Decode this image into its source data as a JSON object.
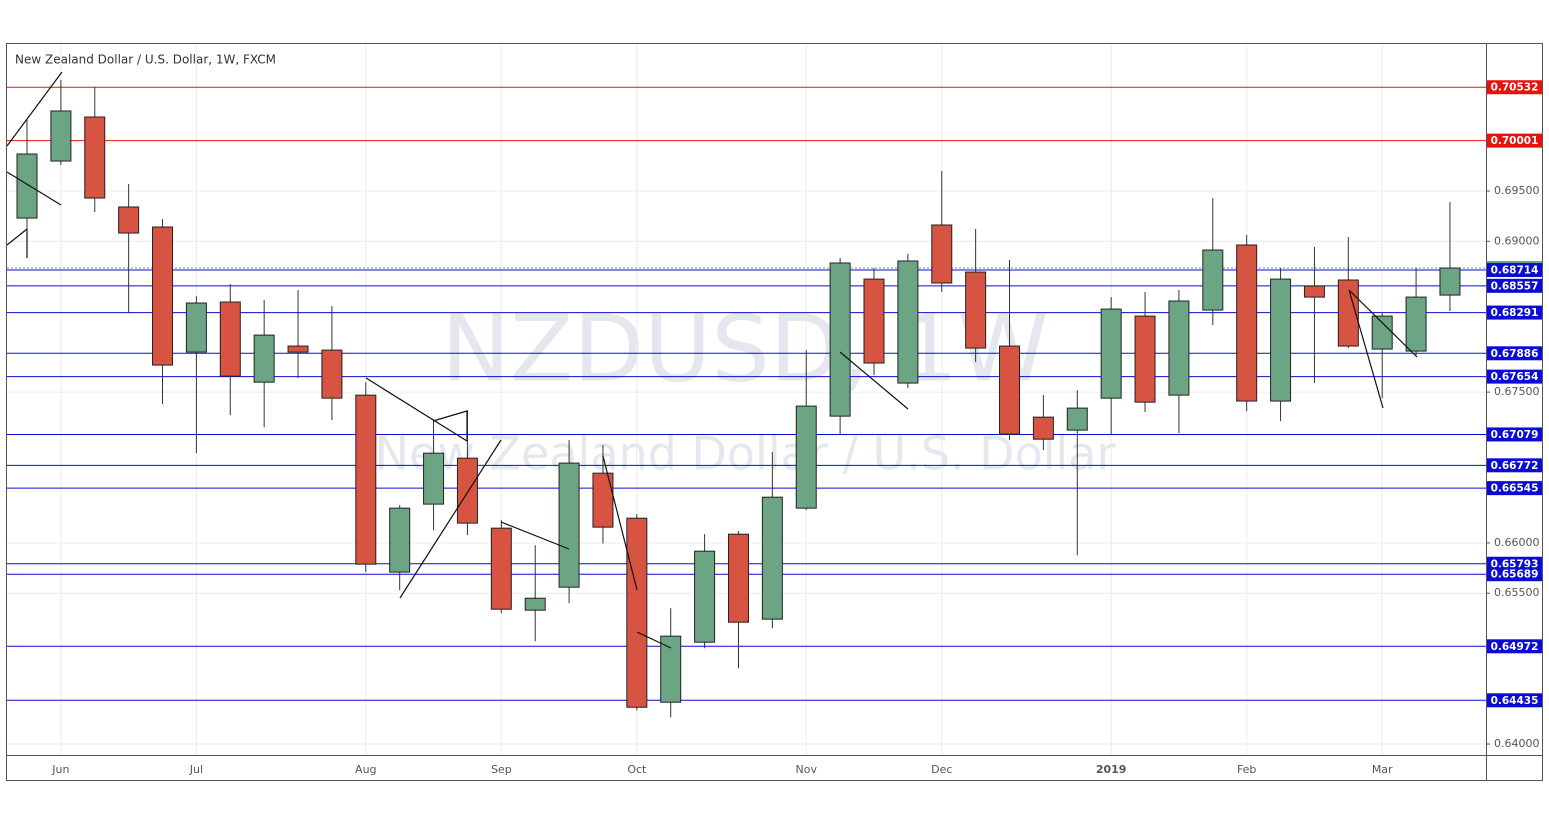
{
  "chart_data": {
    "type": "candlestick",
    "title": "New Zealand Dollar / U.S. Dollar, 1W, FXCM",
    "watermark": "NZDUSD, 1W",
    "watermark_subtitle": "New Zealand Dollar / U.S. Dollar",
    "categories": [
      null,
      "Jun",
      null,
      null,
      null,
      "Jul",
      null,
      null,
      null,
      null,
      "Aug",
      null,
      null,
      null,
      "Sep",
      null,
      null,
      null,
      "Oct",
      null,
      null,
      null,
      null,
      "Nov",
      null,
      null,
      null,
      "Dec",
      null,
      null,
      null,
      null,
      "2019",
      null,
      null,
      null,
      "Feb",
      null,
      null,
      null,
      "Mar",
      null,
      null
    ],
    "open": [
      0.69231,
      0.69798,
      0.70236,
      0.69341,
      0.69142,
      0.67898,
      0.68396,
      0.67599,
      0.67958,
      0.67918,
      0.6747,
      0.6571,
      0.66386,
      0.66843,
      0.66147,
      0.65331,
      0.6556,
      0.66694,
      0.66246,
      0.64416,
      0.65013,
      0.66087,
      0.65242,
      0.66346,
      0.67261,
      0.68624,
      0.6759,
      0.69162,
      0.68694,
      0.67958,
      0.67251,
      0.67122,
      0.6744,
      0.68256,
      0.6747,
      0.68316,
      0.68963,
      0.67411,
      0.68555,
      0.68615,
      0.67928,
      0.67908,
      0.68465
    ],
    "high": [
      0.70206,
      0.70604,
      0.70535,
      0.6957,
      0.69221,
      0.68455,
      0.68575,
      0.68415,
      0.68515,
      0.68356,
      0.67599,
      0.66376,
      0.67221,
      0.67321,
      0.66227,
      0.65978,
      0.67022,
      0.66973,
      0.66286,
      0.65351,
      0.66087,
      0.66117,
      0.66903,
      0.67918,
      0.68833,
      0.68734,
      0.68873,
      0.69699,
      0.69122,
      0.68813,
      0.6747,
      0.6752,
      0.68445,
      0.68495,
      0.68515,
      0.6943,
      0.69062,
      0.68734,
      0.68943,
      0.69042,
      0.68286,
      0.68734,
      0.69391
    ],
    "low": [
      0.68833,
      0.69759,
      0.69291,
      0.68286,
      0.67381,
      0.66893,
      0.67271,
      0.67152,
      0.67639,
      0.67221,
      0.6571,
      0.6553,
      0.66127,
      0.66077,
      0.65301,
      0.65022,
      0.65401,
      0.65993,
      0.64336,
      0.64266,
      0.64953,
      0.64754,
      0.65152,
      0.66326,
      0.67082,
      0.67669,
      0.6754,
      0.68495,
      0.67799,
      0.67022,
      0.66923,
      0.65878,
      0.67082,
      0.67301,
      0.67092,
      0.68167,
      0.67311,
      0.67211,
      0.6759,
      0.67938,
      0.6744,
      0.67869,
      0.68306
    ],
    "close": [
      0.69868,
      0.70296,
      0.6943,
      0.69082,
      0.67769,
      0.68386,
      0.67659,
      0.68067,
      0.67898,
      0.6744,
      0.65789,
      0.66346,
      0.66893,
      0.66197,
      0.65341,
      0.6545,
      0.66794,
      0.66157,
      0.64366,
      0.65073,
      0.65918,
      0.65212,
      0.66455,
      0.67361,
      0.68784,
      0.67789,
      0.68804,
      0.68585,
      0.67938,
      0.67082,
      0.67032,
      0.67341,
      0.68326,
      0.674,
      0.68406,
      0.68913,
      0.67411,
      0.68624,
      0.68445,
      0.67958,
      0.68256,
      0.68445,
      0.68734
    ],
    "up_color": "#6ba583",
    "down_color": "#d75442",
    "ylim": [
      0.63891,
      0.70972
    ],
    "yticks": [
      {
        "value": 0.64,
        "label": "0.64000"
      },
      {
        "value": 0.655,
        "label": "0.65500"
      },
      {
        "value": 0.66,
        "label": "0.66000"
      },
      {
        "value": 0.675,
        "label": "0.67500"
      },
      {
        "value": 0.69,
        "label": "0.69000"
      },
      {
        "value": 0.695,
        "label": "0.69500"
      }
    ],
    "grid": true,
    "levels": [
      0.70532,
      0.70001,
      0.68734,
      0.68714,
      0.68557,
      0.68291,
      0.67886,
      0.67654,
      0.67079,
      0.66772,
      0.66545,
      0.65793,
      0.65689,
      0.64972,
      0.64435
    ],
    "level_colors": [
      "#e8120c",
      "#e8120c",
      "#6ba583",
      "#0b0bd6",
      "#0b0bd6",
      "#0b0bd6",
      "#0b0bd6",
      "#0b0bd6",
      "#0b0bd6",
      "#0b0bd6",
      "#0b0bd6",
      "#0b0bd6",
      "#0b0bd6",
      "#0b0bd6",
      "#0b0bd6"
    ]
  }
}
